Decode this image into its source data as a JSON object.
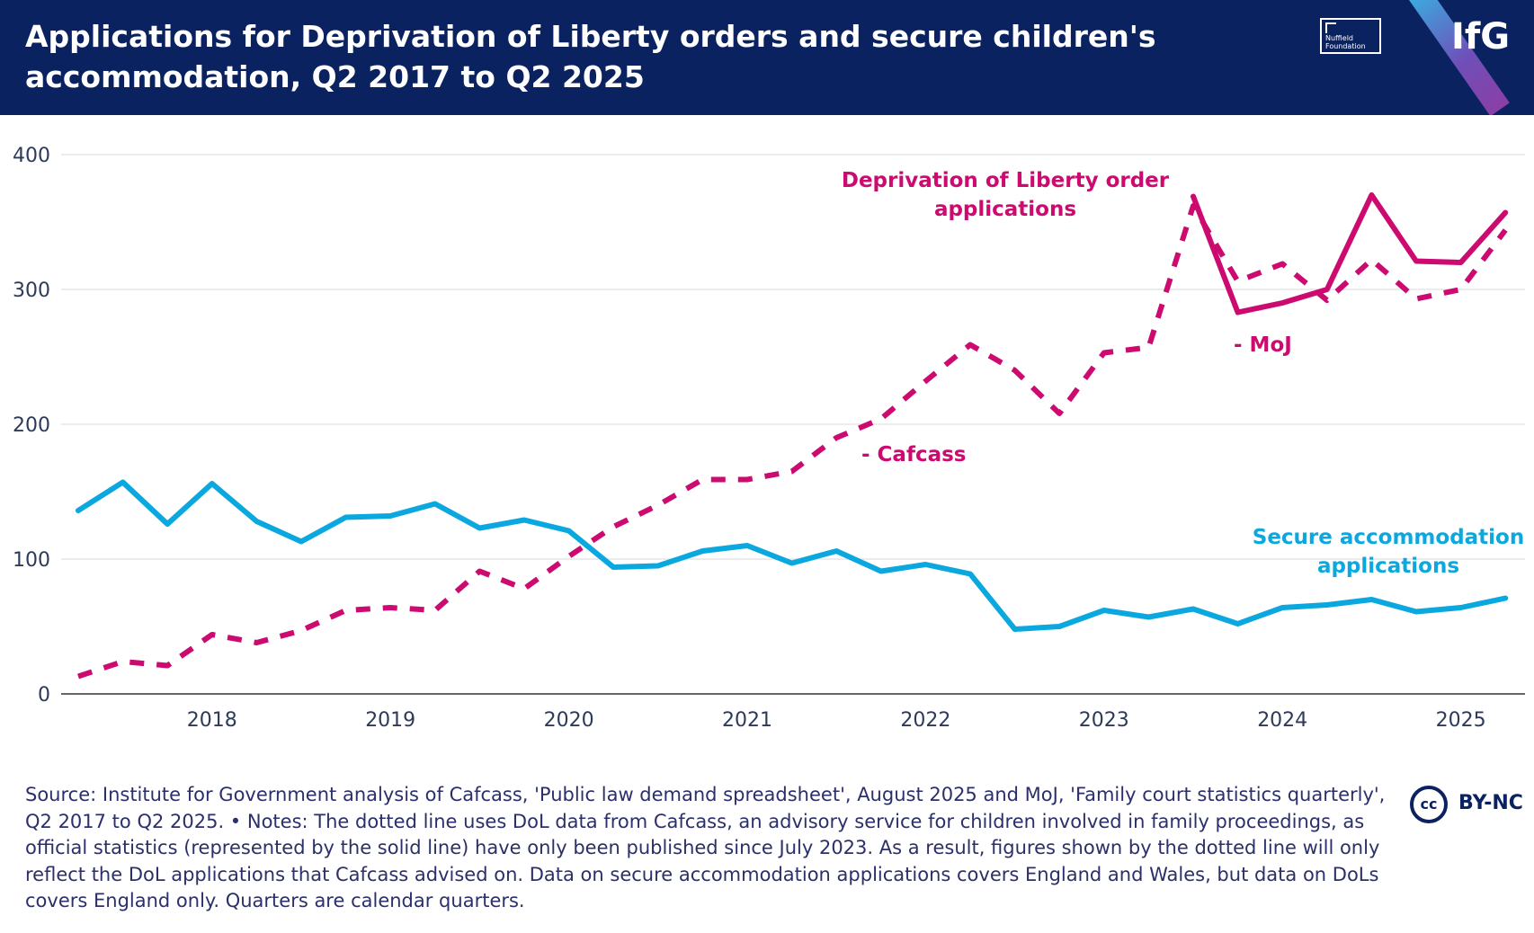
{
  "header": {
    "title": "Applications for Deprivation of Liberty orders and secure children's accommodation, Q2 2017 to Q2 2025",
    "nuffield_logo": "Nuffield Foundation",
    "ifg_logo": "IfG"
  },
  "colors": {
    "header_bg": "#0b2260",
    "dol": "#cc0a6f",
    "secure": "#0ba8e0",
    "gridline": "#e6e6e6",
    "axis_text": "#2d3a5a"
  },
  "chart_data": {
    "type": "line",
    "title": "Applications for Deprivation of Liberty orders and secure children's accommodation, Q2 2017 to Q2 2025",
    "xlabel": "",
    "ylabel": "",
    "ylim": [
      0,
      400
    ],
    "yticks": [
      "0",
      "100",
      "200",
      "300",
      "400"
    ],
    "xticks": [
      "2018",
      "2019",
      "2020",
      "2021",
      "2022",
      "2023",
      "2024",
      "2025"
    ],
    "grid": true,
    "quarters": [
      "2017 Q2",
      "2017 Q3",
      "2017 Q4",
      "2018 Q1",
      "2018 Q2",
      "2018 Q3",
      "2018 Q4",
      "2019 Q1",
      "2019 Q2",
      "2019 Q3",
      "2019 Q4",
      "2020 Q1",
      "2020 Q2",
      "2020 Q3",
      "2020 Q4",
      "2021 Q1",
      "2021 Q2",
      "2021 Q3",
      "2021 Q4",
      "2022 Q1",
      "2022 Q2",
      "2022 Q3",
      "2022 Q4",
      "2023 Q1",
      "2023 Q2",
      "2023 Q3",
      "2023 Q4",
      "2024 Q1",
      "2024 Q2",
      "2024 Q3",
      "2024 Q4",
      "2025 Q1",
      "2025 Q2"
    ],
    "series": [
      {
        "name": "Secure accommodation applications",
        "style": "solid",
        "color": "#0ba8e0",
        "start_index": 0,
        "values": [
          136,
          157,
          126,
          156,
          128,
          113,
          131,
          132,
          141,
          123,
          129,
          121,
          94,
          95,
          106,
          110,
          97,
          106,
          91,
          96,
          89,
          48,
          50,
          62,
          57,
          63,
          52,
          64,
          66,
          70,
          61,
          64,
          71
        ]
      },
      {
        "name": "Deprivation of Liberty order applications - Cafcass",
        "style": "dashed",
        "color": "#cc0a6f",
        "start_index": 0,
        "values": [
          13,
          24,
          21,
          44,
          38,
          47,
          62,
          64,
          62,
          91,
          78,
          102,
          124,
          140,
          159,
          159,
          165,
          190,
          204,
          232,
          259,
          240,
          208,
          253,
          257,
          362,
          306,
          319,
          292,
          322,
          293,
          300,
          344
        ]
      },
      {
        "name": "Deprivation of Liberty order applications - MoJ",
        "style": "solid",
        "color": "#cc0a6f",
        "start_index": 25,
        "values": [
          369,
          283,
          290,
          300,
          370,
          321,
          320,
          357
        ]
      }
    ],
    "annotations": {
      "dol_label_line1": "Deprivation of Liberty order",
      "dol_label_line2": "applications",
      "moj": "- MoJ",
      "cafcass": "- Cafcass",
      "secure_line1": "Secure accommodation",
      "secure_line2": "applications"
    }
  },
  "footer": {
    "source_text": "Source: Institute for Government analysis of Cafcass, 'Public law demand spreadsheet', August 2025 and MoJ, 'Family court statistics quarterly', Q2 2017 to Q2 2025. • Notes: The dotted line uses DoL data from Cafcass, an advisory service for children involved in family proceedings, as official statistics (represented by the solid line) have only been published since July 2023. As a result, figures shown by the dotted line will only reflect the DoL applications that Cafcass advised on. Data on secure accommodation applications covers England and Wales, but data on DoLs covers England only. Quarters are calendar quarters.",
    "cc_badge": "cc",
    "license": "BY-NC"
  }
}
